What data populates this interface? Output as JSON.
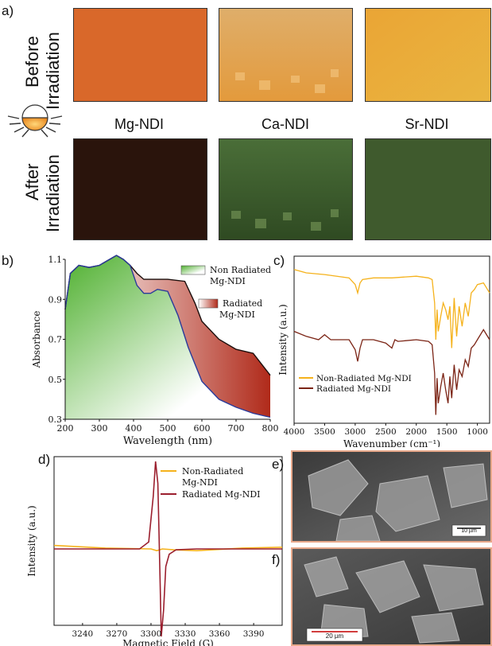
{
  "panel_labels": {
    "a": "a)",
    "b": "b)",
    "c": "c)",
    "d": "d)",
    "e": "e)",
    "f": "f)"
  },
  "panel_a": {
    "row_labels": {
      "before": "Before",
      "before_2": "Irradiation",
      "after": "After",
      "after_2": "Irradiation"
    },
    "columns": [
      "Mg-NDI",
      "Ca-NDI",
      "Sr-NDI"
    ],
    "colors": {
      "before": [
        "#d9682a",
        "#e0a24e",
        "#e3a737"
      ],
      "after": [
        "#2a140c",
        "#3e5a2c",
        "#3f5a2d"
      ]
    }
  },
  "panel_e": {
    "scale_bar": "10 µm"
  },
  "panel_f": {
    "scale_bar": "20 µm"
  },
  "chart_data": [
    {
      "id": "b",
      "type": "area",
      "xlabel": "Wavelength (nm)",
      "ylabel": "Absorbance",
      "xlim": [
        200,
        800
      ],
      "ylim": [
        0.3,
        1.1
      ],
      "xticks": [
        200,
        300,
        400,
        500,
        600,
        700,
        800
      ],
      "yticks": [
        0.3,
        0.5,
        0.7,
        0.9,
        1.1
      ],
      "legend_placement": "top-right",
      "series": [
        {
          "name": "Non Radiated Mg-NDI",
          "color": "#4aa832",
          "x": [
            200,
            215,
            240,
            270,
            300,
            330,
            350,
            370,
            390,
            410,
            430,
            450,
            470,
            500,
            530,
            560,
            600,
            650,
            700,
            750,
            800
          ],
          "y": [
            0.85,
            1.03,
            1.07,
            1.06,
            1.07,
            1.1,
            1.12,
            1.1,
            1.07,
            0.97,
            0.93,
            0.93,
            0.95,
            0.94,
            0.82,
            0.66,
            0.49,
            0.4,
            0.36,
            0.33,
            0.31
          ]
        },
        {
          "name": "Radiated Mg-NDI",
          "color": "#b02a1a",
          "x": [
            200,
            215,
            240,
            270,
            300,
            330,
            350,
            370,
            390,
            410,
            430,
            450,
            470,
            500,
            550,
            580,
            600,
            650,
            700,
            750,
            800
          ],
          "y": [
            0.85,
            1.03,
            1.07,
            1.06,
            1.07,
            1.1,
            1.12,
            1.1,
            1.07,
            1.03,
            1.0,
            1.0,
            1.0,
            1.0,
            0.99,
            0.88,
            0.79,
            0.7,
            0.65,
            0.63,
            0.52
          ]
        }
      ]
    },
    {
      "id": "c",
      "type": "line",
      "xlabel": "Wavenumber (cm⁻¹)",
      "ylabel": "Intensity (a.u.)",
      "xlim": [
        4000,
        800
      ],
      "xticks": [
        4000,
        3500,
        3000,
        2500,
        2000,
        1500,
        1000
      ],
      "legend_placement": "bottom-left",
      "series": [
        {
          "name": "Non-Radiated Mg-NDI",
          "color": "#f5b21c",
          "x": [
            4000,
            3800,
            3500,
            3100,
            3000,
            2960,
            2920,
            2880,
            2700,
            2400,
            2000,
            1800,
            1740,
            1700,
            1680,
            1660,
            1640,
            1600,
            1560,
            1520,
            1480,
            1450,
            1420,
            1380,
            1340,
            1300,
            1250,
            1200,
            1150,
            1100,
            1050,
            1000,
            900,
            800
          ],
          "y": [
            0.92,
            0.9,
            0.89,
            0.87,
            0.83,
            0.78,
            0.84,
            0.86,
            0.87,
            0.87,
            0.88,
            0.87,
            0.86,
            0.72,
            0.5,
            0.68,
            0.55,
            0.64,
            0.72,
            0.68,
            0.62,
            0.7,
            0.45,
            0.75,
            0.52,
            0.7,
            0.58,
            0.72,
            0.64,
            0.78,
            0.8,
            0.83,
            0.84,
            0.78
          ]
        },
        {
          "name": "Radiated Mg-NDI",
          "color": "#7b2415",
          "x": [
            4000,
            3800,
            3600,
            3500,
            3400,
            3100,
            3000,
            2960,
            2920,
            2880,
            2700,
            2500,
            2400,
            2350,
            2300,
            2000,
            1800,
            1740,
            1700,
            1680,
            1660,
            1640,
            1600,
            1560,
            1520,
            1480,
            1450,
            1420,
            1380,
            1340,
            1300,
            1250,
            1200,
            1150,
            1100,
            1050,
            1000,
            900,
            800
          ],
          "y": [
            0.55,
            0.52,
            0.5,
            0.53,
            0.5,
            0.5,
            0.44,
            0.37,
            0.45,
            0.5,
            0.5,
            0.48,
            0.45,
            0.5,
            0.49,
            0.5,
            0.49,
            0.47,
            0.3,
            0.05,
            0.27,
            0.12,
            0.22,
            0.3,
            0.2,
            0.12,
            0.28,
            0.15,
            0.35,
            0.2,
            0.32,
            0.28,
            0.38,
            0.34,
            0.45,
            0.47,
            0.5,
            0.56,
            0.5
          ]
        }
      ]
    },
    {
      "id": "d",
      "type": "line",
      "xlabel": "Magnetic Field (G)",
      "ylabel": "Intensity (a.u.)",
      "xlim": [
        3215,
        3415
      ],
      "xticks": [
        3240,
        3270,
        3300,
        3330,
        3360,
        3390
      ],
      "legend_placement": "top-right",
      "series": [
        {
          "name": "Non-Radiated Mg-NDI",
          "color": "#f5b21c",
          "x": [
            3215,
            3260,
            3300,
            3305,
            3310,
            3320,
            3340,
            3380,
            3415
          ],
          "y": [
            0.04,
            0.01,
            0.0,
            -0.02,
            0.0,
            -0.01,
            -0.02,
            0.01,
            0.02
          ]
        },
        {
          "name": "Radiated Mg-NDI",
          "color": "#9b1f2e",
          "x": [
            3215,
            3290,
            3298,
            3302,
            3304,
            3306,
            3307,
            3308,
            3309,
            3311,
            3313,
            3316,
            3322,
            3340,
            3415
          ],
          "y": [
            0.0,
            0.0,
            0.08,
            0.6,
            1.0,
            0.75,
            0.2,
            -0.4,
            -1.0,
            -0.7,
            -0.2,
            -0.06,
            -0.01,
            0.0,
            0.0
          ]
        }
      ]
    }
  ]
}
